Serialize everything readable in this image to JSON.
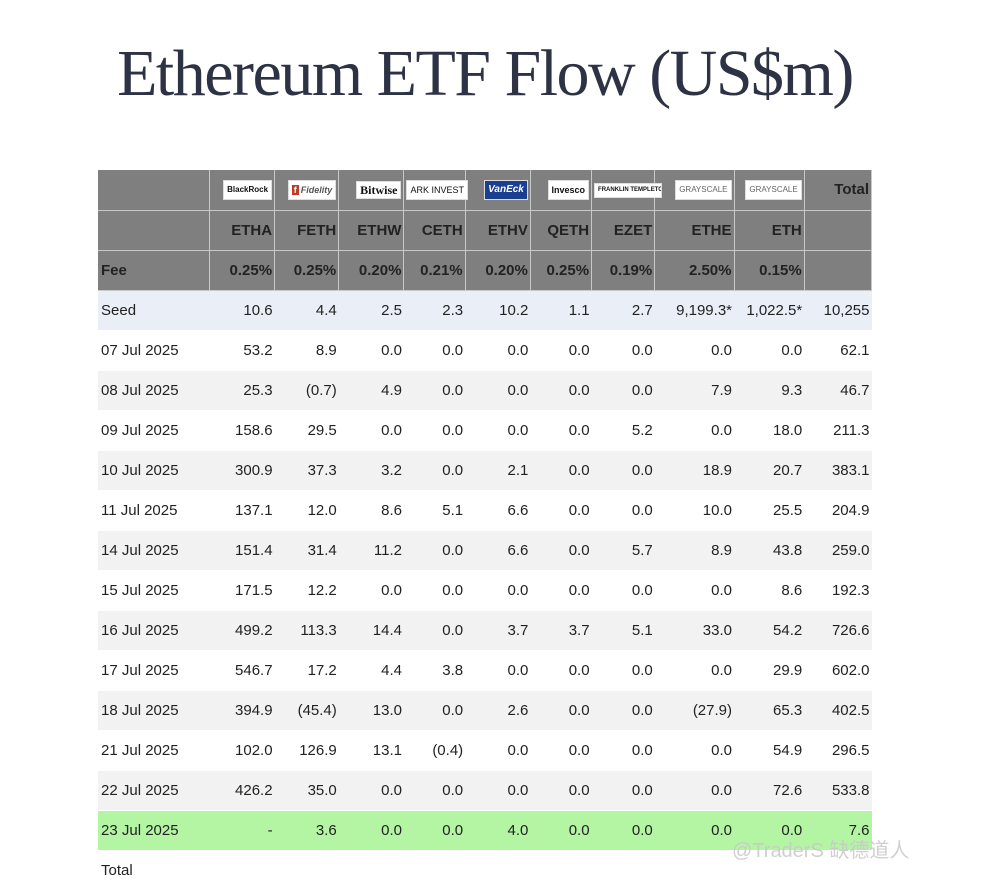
{
  "title": "Ethereum ETF Flow (US$m)",
  "issuers": [
    "BlackRock",
    "Fidelity",
    "Bitwise",
    "ARK INVEST",
    "VanEck",
    "Invesco",
    "FRANKLIN TEMPLETON",
    "GRAYSCALE",
    "GRAYSCALE"
  ],
  "header_total": "Total",
  "tickers": [
    "ETHA",
    "FETH",
    "ETHW",
    "CETH",
    "ETHV",
    "QETH",
    "EZET",
    "ETHE",
    "ETH"
  ],
  "fee_label": "Fee",
  "fees": [
    "0.25%",
    "0.25%",
    "0.20%",
    "0.21%",
    "0.20%",
    "0.25%",
    "0.19%",
    "2.50%",
    "0.15%"
  ],
  "rows": [
    {
      "label": "Seed",
      "values": [
        "10.6",
        "4.4",
        "2.5",
        "2.3",
        "10.2",
        "1.1",
        "2.7",
        "9,199.3*",
        "1,022.5*"
      ],
      "total": "10,255"
    },
    {
      "label": "07 Jul 2025",
      "values": [
        "53.2",
        "8.9",
        "0.0",
        "0.0",
        "0.0",
        "0.0",
        "0.0",
        "0.0",
        "0.0"
      ],
      "total": "62.1"
    },
    {
      "label": "08 Jul 2025",
      "values": [
        "25.3",
        "(0.7)",
        "4.9",
        "0.0",
        "0.0",
        "0.0",
        "0.0",
        "7.9",
        "9.3"
      ],
      "total": "46.7"
    },
    {
      "label": "09 Jul 2025",
      "values": [
        "158.6",
        "29.5",
        "0.0",
        "0.0",
        "0.0",
        "0.0",
        "5.2",
        "0.0",
        "18.0"
      ],
      "total": "211.3"
    },
    {
      "label": "10 Jul 2025",
      "values": [
        "300.9",
        "37.3",
        "3.2",
        "0.0",
        "2.1",
        "0.0",
        "0.0",
        "18.9",
        "20.7"
      ],
      "total": "383.1"
    },
    {
      "label": "11 Jul 2025",
      "values": [
        "137.1",
        "12.0",
        "8.6",
        "5.1",
        "6.6",
        "0.0",
        "0.0",
        "10.0",
        "25.5"
      ],
      "total": "204.9"
    },
    {
      "label": "14 Jul 2025",
      "values": [
        "151.4",
        "31.4",
        "11.2",
        "0.0",
        "6.6",
        "0.0",
        "5.7",
        "8.9",
        "43.8"
      ],
      "total": "259.0"
    },
    {
      "label": "15 Jul 2025",
      "values": [
        "171.5",
        "12.2",
        "0.0",
        "0.0",
        "0.0",
        "0.0",
        "0.0",
        "0.0",
        "8.6"
      ],
      "total": "192.3"
    },
    {
      "label": "16 Jul 2025",
      "values": [
        "499.2",
        "113.3",
        "14.4",
        "0.0",
        "3.7",
        "3.7",
        "5.1",
        "33.0",
        "54.2"
      ],
      "total": "726.6"
    },
    {
      "label": "17 Jul 2025",
      "values": [
        "546.7",
        "17.2",
        "4.4",
        "3.8",
        "0.0",
        "0.0",
        "0.0",
        "0.0",
        "29.9"
      ],
      "total": "602.0"
    },
    {
      "label": "18 Jul 2025",
      "values": [
        "394.9",
        "(45.4)",
        "13.0",
        "0.0",
        "2.6",
        "0.0",
        "0.0",
        "(27.9)",
        "65.3"
      ],
      "total": "402.5"
    },
    {
      "label": "21 Jul 2025",
      "values": [
        "102.0",
        "126.9",
        "13.1",
        "(0.4)",
        "0.0",
        "0.0",
        "0.0",
        "0.0",
        "54.9"
      ],
      "total": "296.5"
    },
    {
      "label": "22 Jul 2025",
      "values": [
        "426.2",
        "35.0",
        "0.0",
        "0.0",
        "0.0",
        "0.0",
        "0.0",
        "0.0",
        "72.6"
      ],
      "total": "533.8"
    },
    {
      "label": "23 Jul 2025",
      "values": [
        "-",
        "3.6",
        "0.0",
        "0.0",
        "4.0",
        "0.0",
        "0.0",
        "0.0",
        "0.0"
      ],
      "total": "7.6"
    },
    {
      "label": "Total",
      "values": [
        "",
        "",
        "",
        "",
        "",
        "",
        "",
        "",
        ""
      ],
      "total": ""
    }
  ],
  "watermark": "@TraderS 缺德道人",
  "colors": {
    "header_bg": "#7f7f7f",
    "seed_bg": "#eaeef7",
    "stripe_bg": "#f2f2f2",
    "highlight_bg": "#b4f5a4",
    "negative": "#d63a2f"
  }
}
